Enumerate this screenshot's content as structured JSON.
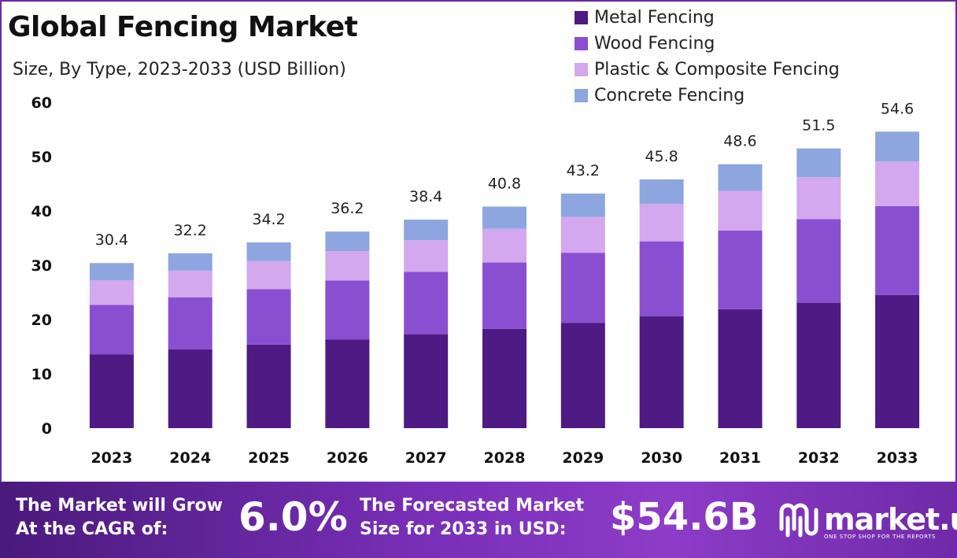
{
  "chart_data": {
    "type": "bar",
    "stacked": true,
    "title": "Global Fencing Market",
    "subtitle": "Size, By Type, 2023-2033 (USD Billion)",
    "categories": [
      "2023",
      "2024",
      "2025",
      "2026",
      "2027",
      "2028",
      "2029",
      "2030",
      "2031",
      "2032",
      "2033"
    ],
    "series": [
      {
        "name": "Metal Fencing",
        "color": "#4e1a84",
        "values": [
          13.6,
          14.5,
          15.4,
          16.3,
          17.3,
          18.3,
          19.4,
          20.6,
          21.9,
          23.1,
          24.5
        ]
      },
      {
        "name": "Wood Fencing",
        "color": "#8a4fd0",
        "values": [
          9.1,
          9.6,
          10.2,
          10.9,
          11.5,
          12.2,
          12.9,
          13.8,
          14.5,
          15.4,
          16.4
        ]
      },
      {
        "name": "Plastic & Composite Fencing",
        "color": "#d3a8ee",
        "values": [
          4.5,
          4.9,
          5.2,
          5.4,
          5.8,
          6.2,
          6.6,
          6.9,
          7.3,
          7.7,
          8.2
        ]
      },
      {
        "name": "Concrete Fencing",
        "color": "#8ea6df",
        "values": [
          3.2,
          3.2,
          3.4,
          3.6,
          3.8,
          4.1,
          4.3,
          4.5,
          4.9,
          5.3,
          5.5
        ]
      }
    ],
    "totals": [
      "30.4",
      "32.2",
      "34.2",
      "36.2",
      "38.4",
      "40.8",
      "43.2",
      "45.8",
      "48.6",
      "51.5",
      "54.6"
    ],
    "ylim": [
      0,
      60
    ],
    "yticks": [
      "0",
      "10",
      "20",
      "30",
      "40",
      "50",
      "60"
    ],
    "legend_position": "top-right",
    "grid": false
  },
  "footer": {
    "cagr_line1": "The Market will Grow",
    "cagr_line2": "At the CAGR of:",
    "cagr_value": "6.0%",
    "forecast_line1": "The Forecasted Market",
    "forecast_line2": "Size for 2033 in USD:",
    "forecast_value": "$54.6B",
    "brand_name": "market.us",
    "brand_tagline": "ONE STOP SHOP FOR THE REPORTS"
  }
}
